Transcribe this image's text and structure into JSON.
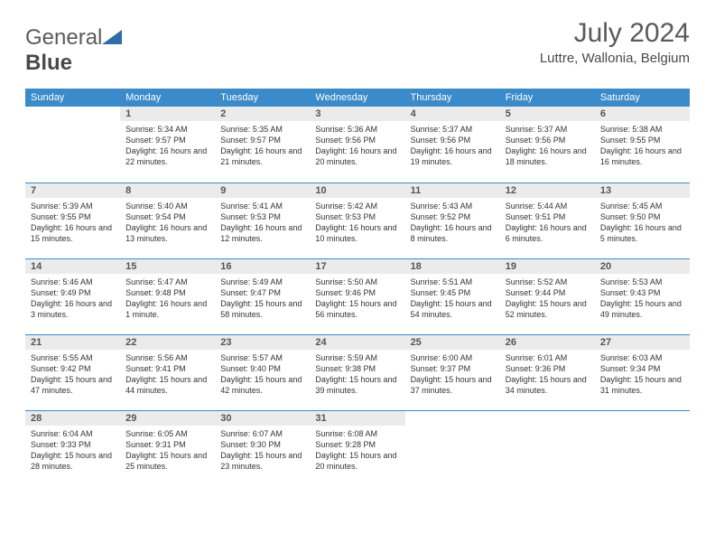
{
  "brand": {
    "part1": "General",
    "part2": "Blue"
  },
  "title": "July 2024",
  "location": "Luttre, Wallonia, Belgium",
  "colors": {
    "header_bg": "#3b8bca",
    "header_text": "#ffffff",
    "daynum_bg": "#ebebeb",
    "rule": "#3b8bca",
    "logo_tri": "#2f6fa8"
  },
  "weekdays": [
    "Sunday",
    "Monday",
    "Tuesday",
    "Wednesday",
    "Thursday",
    "Friday",
    "Saturday"
  ],
  "weeks": [
    [
      null,
      {
        "n": "1",
        "sr": "5:34 AM",
        "ss": "9:57 PM",
        "dl": "16 hours and 22 minutes."
      },
      {
        "n": "2",
        "sr": "5:35 AM",
        "ss": "9:57 PM",
        "dl": "16 hours and 21 minutes."
      },
      {
        "n": "3",
        "sr": "5:36 AM",
        "ss": "9:56 PM",
        "dl": "16 hours and 20 minutes."
      },
      {
        "n": "4",
        "sr": "5:37 AM",
        "ss": "9:56 PM",
        "dl": "16 hours and 19 minutes."
      },
      {
        "n": "5",
        "sr": "5:37 AM",
        "ss": "9:56 PM",
        "dl": "16 hours and 18 minutes."
      },
      {
        "n": "6",
        "sr": "5:38 AM",
        "ss": "9:55 PM",
        "dl": "16 hours and 16 minutes."
      }
    ],
    [
      {
        "n": "7",
        "sr": "5:39 AM",
        "ss": "9:55 PM",
        "dl": "16 hours and 15 minutes."
      },
      {
        "n": "8",
        "sr": "5:40 AM",
        "ss": "9:54 PM",
        "dl": "16 hours and 13 minutes."
      },
      {
        "n": "9",
        "sr": "5:41 AM",
        "ss": "9:53 PM",
        "dl": "16 hours and 12 minutes."
      },
      {
        "n": "10",
        "sr": "5:42 AM",
        "ss": "9:53 PM",
        "dl": "16 hours and 10 minutes."
      },
      {
        "n": "11",
        "sr": "5:43 AM",
        "ss": "9:52 PM",
        "dl": "16 hours and 8 minutes."
      },
      {
        "n": "12",
        "sr": "5:44 AM",
        "ss": "9:51 PM",
        "dl": "16 hours and 6 minutes."
      },
      {
        "n": "13",
        "sr": "5:45 AM",
        "ss": "9:50 PM",
        "dl": "16 hours and 5 minutes."
      }
    ],
    [
      {
        "n": "14",
        "sr": "5:46 AM",
        "ss": "9:49 PM",
        "dl": "16 hours and 3 minutes."
      },
      {
        "n": "15",
        "sr": "5:47 AM",
        "ss": "9:48 PM",
        "dl": "16 hours and 1 minute."
      },
      {
        "n": "16",
        "sr": "5:49 AM",
        "ss": "9:47 PM",
        "dl": "15 hours and 58 minutes."
      },
      {
        "n": "17",
        "sr": "5:50 AM",
        "ss": "9:46 PM",
        "dl": "15 hours and 56 minutes."
      },
      {
        "n": "18",
        "sr": "5:51 AM",
        "ss": "9:45 PM",
        "dl": "15 hours and 54 minutes."
      },
      {
        "n": "19",
        "sr": "5:52 AM",
        "ss": "9:44 PM",
        "dl": "15 hours and 52 minutes."
      },
      {
        "n": "20",
        "sr": "5:53 AM",
        "ss": "9:43 PM",
        "dl": "15 hours and 49 minutes."
      }
    ],
    [
      {
        "n": "21",
        "sr": "5:55 AM",
        "ss": "9:42 PM",
        "dl": "15 hours and 47 minutes."
      },
      {
        "n": "22",
        "sr": "5:56 AM",
        "ss": "9:41 PM",
        "dl": "15 hours and 44 minutes."
      },
      {
        "n": "23",
        "sr": "5:57 AM",
        "ss": "9:40 PM",
        "dl": "15 hours and 42 minutes."
      },
      {
        "n": "24",
        "sr": "5:59 AM",
        "ss": "9:38 PM",
        "dl": "15 hours and 39 minutes."
      },
      {
        "n": "25",
        "sr": "6:00 AM",
        "ss": "9:37 PM",
        "dl": "15 hours and 37 minutes."
      },
      {
        "n": "26",
        "sr": "6:01 AM",
        "ss": "9:36 PM",
        "dl": "15 hours and 34 minutes."
      },
      {
        "n": "27",
        "sr": "6:03 AM",
        "ss": "9:34 PM",
        "dl": "15 hours and 31 minutes."
      }
    ],
    [
      {
        "n": "28",
        "sr": "6:04 AM",
        "ss": "9:33 PM",
        "dl": "15 hours and 28 minutes."
      },
      {
        "n": "29",
        "sr": "6:05 AM",
        "ss": "9:31 PM",
        "dl": "15 hours and 25 minutes."
      },
      {
        "n": "30",
        "sr": "6:07 AM",
        "ss": "9:30 PM",
        "dl": "15 hours and 23 minutes."
      },
      {
        "n": "31",
        "sr": "6:08 AM",
        "ss": "9:28 PM",
        "dl": "15 hours and 20 minutes."
      },
      null,
      null,
      null
    ]
  ],
  "labels": {
    "sunrise": "Sunrise:",
    "sunset": "Sunset:",
    "daylight": "Daylight:"
  }
}
